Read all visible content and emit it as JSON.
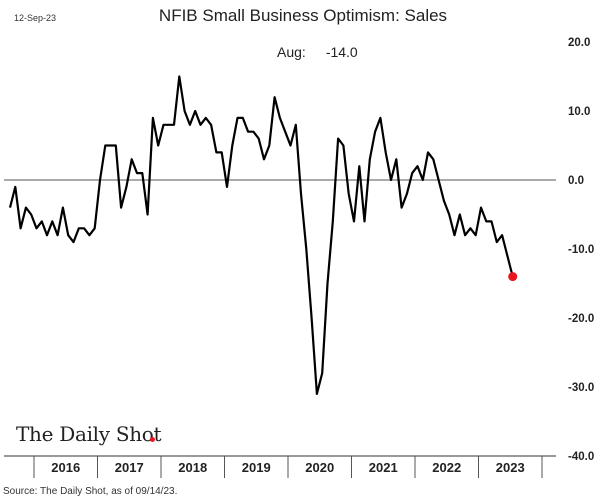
{
  "header": {
    "date": "12-Sep-23",
    "title": "NFIB Small Business Optimism: Sales"
  },
  "annotation": {
    "label": "Aug:",
    "value": "-14.0"
  },
  "logo": {
    "text": "The Daily Shot"
  },
  "source": "Source: The Daily Shot, as of 09/14/23.",
  "colors": {
    "line": "#000000",
    "highlight": "#e8161f",
    "zero_line": "#555555"
  },
  "chart_data": {
    "type": "line",
    "title": "NFIB Small Business Optimism: Sales",
    "xlabel": "",
    "ylabel": "",
    "ylim": [
      -40,
      20
    ],
    "yticks": [
      20,
      10,
      0,
      -10,
      -20,
      -30,
      -40
    ],
    "ytick_labels": [
      "20.0",
      "10.0",
      "0.0",
      "-10.0",
      "-20.0",
      "-30.0",
      "-40.0"
    ],
    "x_start": "2016-01",
    "x_end": "2023-08",
    "year_labels": [
      "2016",
      "2017",
      "2018",
      "2019",
      "2020",
      "2021",
      "2022",
      "2023"
    ],
    "grid": false,
    "zero_line": true,
    "highlight_last": true,
    "series": [
      {
        "values": [
          -4,
          -1,
          -7,
          -4,
          -5,
          -7,
          -6,
          -8,
          -6,
          -8,
          -4,
          -8,
          -9,
          -7,
          -7,
          -8,
          -7,
          0,
          5,
          5,
          5,
          -4,
          -1,
          3,
          1,
          1,
          -5,
          9,
          5,
          8,
          8,
          8,
          15,
          10,
          8,
          10,
          8,
          9,
          8,
          4,
          4,
          -1,
          5,
          9,
          9,
          7,
          7,
          6,
          3,
          5,
          12,
          9,
          7,
          5,
          8,
          -2,
          -10,
          -20,
          -31,
          -28,
          -15,
          -6,
          6,
          5,
          -2,
          -6,
          2,
          -6,
          3,
          7,
          9,
          4,
          0,
          3,
          -4,
          -2,
          1,
          2,
          0,
          4,
          3,
          0,
          -3,
          -5,
          -8,
          -5,
          -8,
          -7,
          -8,
          -4,
          -6,
          -6,
          -9,
          -8,
          -11,
          -14
        ]
      }
    ]
  }
}
